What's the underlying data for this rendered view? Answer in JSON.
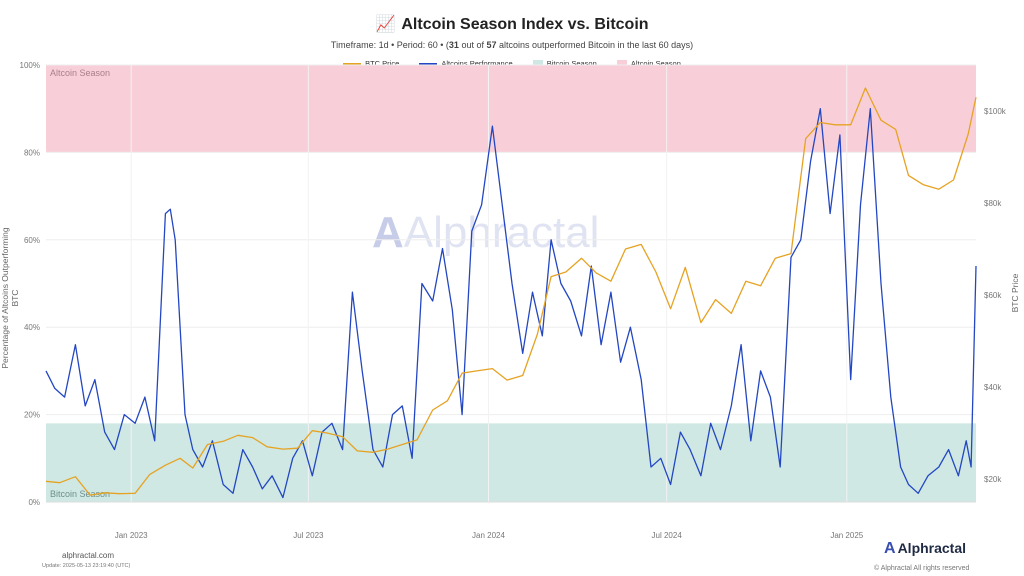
{
  "header": {
    "title_icon": "📈",
    "title": "Altcoin Season Index vs. Bitcoin",
    "subtitle_prefix": "Timeframe: 1d  •  Period: 60  •  (",
    "subtitle_count": "31",
    "subtitle_mid": " out of ",
    "subtitle_total": "57",
    "subtitle_suffix": " altcoins outperformed Bitcoin in the last 60 days)"
  },
  "footer": {
    "site": "alphractal.com",
    "update": "Update: 2025-05-13 23:19:40 (UTC)",
    "copyright": "© Alphractal All rights reserved",
    "brand": "Alphractal",
    "watermark": "Alphractal"
  },
  "chart_data": {
    "type": "line",
    "x_tick_labels": [
      "Jan 2023",
      "Jul 2023",
      "Jan 2024",
      "Jul 2024",
      "Jan 2025"
    ],
    "x_range": [
      "2022-10-06",
      "2025-05-13"
    ],
    "y_left": {
      "label": "Percentage of Altcoins Outperforming BTC",
      "range": [
        0,
        100
      ],
      "ticks": [
        "0%",
        "20%",
        "40%",
        "60%",
        "80%",
        "100%"
      ]
    },
    "y_right": {
      "label": "BTC Price",
      "range": [
        15000,
        110000
      ],
      "ticks": [
        "$20k",
        "$40k",
        "$60k",
        "$80k",
        "$100k"
      ],
      "tick_values": [
        20000,
        40000,
        60000,
        80000,
        100000
      ]
    },
    "bands": [
      {
        "name": "Altcoin Season",
        "from": 80,
        "to": 100,
        "color": "#f8cfd9",
        "label": "Altcoin Season"
      },
      {
        "name": "Bitcoin Season",
        "from": 0,
        "to": 18,
        "color": "#cfe8e4",
        "label": "Bitcoin Season"
      }
    ],
    "legend": [
      "BTC Price",
      "Altcoins Performance",
      "Bitcoin Season",
      "Altcoin Season"
    ],
    "colors": {
      "btc": "#e6a323",
      "alt": "#2347c2",
      "grid": "#eeeeee"
    },
    "series": [
      {
        "name": "Altcoins Performance",
        "axis": "left",
        "dates": [
          "2022-10-06",
          "2022-10-15",
          "2022-10-25",
          "2022-11-05",
          "2022-11-15",
          "2022-11-25",
          "2022-12-05",
          "2022-12-15",
          "2022-12-25",
          "2023-01-05",
          "2023-01-15",
          "2023-01-25",
          "2023-02-05",
          "2023-02-10",
          "2023-02-15",
          "2023-02-25",
          "2023-03-05",
          "2023-03-15",
          "2023-03-25",
          "2023-04-05",
          "2023-04-15",
          "2023-04-25",
          "2023-05-05",
          "2023-05-15",
          "2023-05-25",
          "2023-06-05",
          "2023-06-15",
          "2023-06-25",
          "2023-07-05",
          "2023-07-15",
          "2023-07-25",
          "2023-08-05",
          "2023-08-15",
          "2023-08-25",
          "2023-09-05",
          "2023-09-15",
          "2023-09-25",
          "2023-10-05",
          "2023-10-15",
          "2023-10-25",
          "2023-11-05",
          "2023-11-15",
          "2023-11-25",
          "2023-12-05",
          "2023-12-15",
          "2023-12-25",
          "2024-01-05",
          "2024-01-15",
          "2024-01-25",
          "2024-02-05",
          "2024-02-15",
          "2024-02-25",
          "2024-03-05",
          "2024-03-15",
          "2024-03-25",
          "2024-04-05",
          "2024-04-15",
          "2024-04-25",
          "2024-05-05",
          "2024-05-15",
          "2024-05-25",
          "2024-06-05",
          "2024-06-15",
          "2024-06-25",
          "2024-07-05",
          "2024-07-15",
          "2024-07-25",
          "2024-08-05",
          "2024-08-15",
          "2024-08-25",
          "2024-09-05",
          "2024-09-15",
          "2024-09-25",
          "2024-10-05",
          "2024-10-15",
          "2024-10-25",
          "2024-11-05",
          "2024-11-15",
          "2024-11-25",
          "2024-12-05",
          "2024-12-15",
          "2024-12-25",
          "2025-01-05",
          "2025-01-15",
          "2025-01-25",
          "2025-02-05",
          "2025-02-15",
          "2025-02-25",
          "2025-03-05",
          "2025-03-15",
          "2025-03-25",
          "2025-04-05",
          "2025-04-15",
          "2025-04-25",
          "2025-05-03",
          "2025-05-08",
          "2025-05-13"
        ],
        "values": [
          30,
          26,
          24,
          36,
          22,
          28,
          16,
          12,
          20,
          18,
          24,
          14,
          66,
          67,
          60,
          20,
          12,
          8,
          14,
          4,
          2,
          12,
          8,
          3,
          6,
          1,
          10,
          14,
          6,
          16,
          18,
          12,
          48,
          30,
          12,
          8,
          20,
          22,
          10,
          50,
          46,
          58,
          44,
          20,
          62,
          68,
          86,
          68,
          50,
          34,
          48,
          38,
          60,
          50,
          46,
          38,
          54,
          36,
          48,
          32,
          40,
          28,
          8,
          10,
          4,
          16,
          12,
          6,
          18,
          12,
          22,
          36,
          14,
          30,
          24,
          8,
          56,
          60,
          78,
          90,
          66,
          84,
          28,
          68,
          90,
          50,
          24,
          8,
          4,
          2,
          6,
          8,
          12,
          6,
          14,
          8,
          54
        ]
      },
      {
        "name": "BTC Price",
        "axis": "right",
        "dates": [
          "2022-10-06",
          "2022-10-20",
          "2022-11-05",
          "2022-11-20",
          "2022-12-05",
          "2022-12-20",
          "2023-01-05",
          "2023-01-20",
          "2023-02-05",
          "2023-02-20",
          "2023-03-05",
          "2023-03-20",
          "2023-04-05",
          "2023-04-20",
          "2023-05-05",
          "2023-05-20",
          "2023-06-05",
          "2023-06-20",
          "2023-07-05",
          "2023-07-20",
          "2023-08-05",
          "2023-08-20",
          "2023-09-05",
          "2023-09-20",
          "2023-10-05",
          "2023-10-20",
          "2023-11-05",
          "2023-11-20",
          "2023-12-05",
          "2023-12-20",
          "2024-01-05",
          "2024-01-20",
          "2024-02-05",
          "2024-02-20",
          "2024-03-05",
          "2024-03-20",
          "2024-04-05",
          "2024-04-20",
          "2024-05-05",
          "2024-05-20",
          "2024-06-05",
          "2024-06-20",
          "2024-07-05",
          "2024-07-20",
          "2024-08-05",
          "2024-08-20",
          "2024-09-05",
          "2024-09-20",
          "2024-10-05",
          "2024-10-20",
          "2024-11-05",
          "2024-11-20",
          "2024-12-05",
          "2024-12-20",
          "2025-01-05",
          "2025-01-20",
          "2025-02-05",
          "2025-02-20",
          "2025-03-05",
          "2025-03-20",
          "2025-04-05",
          "2025-04-20",
          "2025-05-05",
          "2025-05-13"
        ],
        "values": [
          19500,
          19200,
          20500,
          16500,
          17000,
          16800,
          16900,
          21000,
          23000,
          24500,
          22400,
          27500,
          28200,
          29500,
          29000,
          27000,
          26500,
          26700,
          30500,
          30000,
          29200,
          26100,
          25800,
          26500,
          27500,
          28500,
          35000,
          37000,
          43000,
          43500,
          44000,
          41500,
          42500,
          51500,
          64000,
          65000,
          68000,
          64800,
          63000,
          70000,
          71000,
          65000,
          57000,
          66000,
          54000,
          59000,
          56000,
          63000,
          62000,
          68000,
          69000,
          94000,
          97500,
          97000,
          97000,
          105000,
          98000,
          96000,
          86000,
          84000,
          83000,
          85000,
          95000,
          103000
        ]
      }
    ]
  }
}
